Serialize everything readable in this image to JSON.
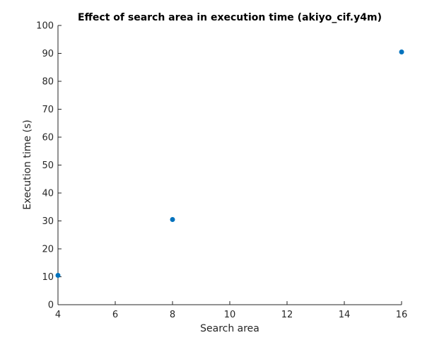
{
  "chart_data": {
    "type": "scatter",
    "title": "Effect of search area in execution time (akiyo_cif.y4m)",
    "xlabel": "Search area",
    "ylabel": "Execution time (s)",
    "xlim": [
      4,
      16
    ],
    "ylim": [
      0,
      100
    ],
    "xticks": [
      4,
      6,
      8,
      10,
      12,
      14,
      16
    ],
    "yticks": [
      0,
      10,
      20,
      30,
      40,
      50,
      60,
      70,
      80,
      90,
      100
    ],
    "grid": false,
    "legend": "none",
    "series": [
      {
        "color": "#0072BD",
        "x": [
          4,
          8,
          16
        ],
        "y": [
          10.5,
          30.5,
          90.5
        ]
      }
    ]
  }
}
